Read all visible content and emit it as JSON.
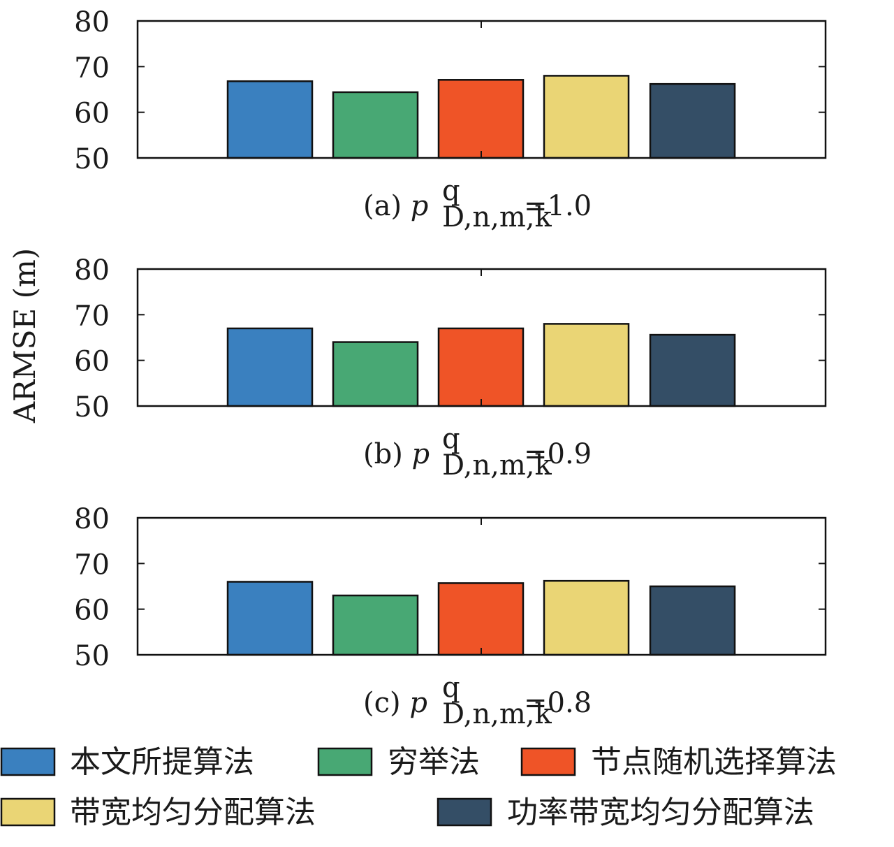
{
  "chart_data": {
    "type": "bar",
    "ylabel": "ARMSE (m)",
    "ylim": [
      50,
      80
    ],
    "yticks": [
      50,
      60,
      70,
      80
    ],
    "grid": false,
    "legend_position": "bottom",
    "series": [
      {
        "name": "本文所提算法",
        "color": "#3a80bf"
      },
      {
        "name": "穷举法",
        "color": "#48a874"
      },
      {
        "name": "节点随机选择算法",
        "color": "#ef5427"
      },
      {
        "name": "带宽均匀分配算法",
        "color": "#ead575"
      },
      {
        "name": "功率带宽均匀分配算法",
        "color": "#344e66"
      }
    ],
    "panels": [
      {
        "caption_prefix": "(a)",
        "caption_var": "p",
        "caption_sup": "q",
        "caption_sub": "D,n,m,k",
        "caption_value": "=1.0",
        "values": [
          66.8,
          64.4,
          67.1,
          68.0,
          66.2
        ]
      },
      {
        "caption_prefix": "(b)",
        "caption_var": "p",
        "caption_sup": "q",
        "caption_sub": "D,n,m,k",
        "caption_value": "=0.9",
        "values": [
          67.0,
          64.0,
          67.0,
          68.0,
          65.6
        ]
      },
      {
        "caption_prefix": "(c)",
        "caption_var": "p",
        "caption_sup": "q",
        "caption_sub": "D,n,m,k",
        "caption_value": "=0.8",
        "values": [
          66.0,
          63.0,
          65.7,
          66.2,
          65.0
        ]
      }
    ]
  }
}
